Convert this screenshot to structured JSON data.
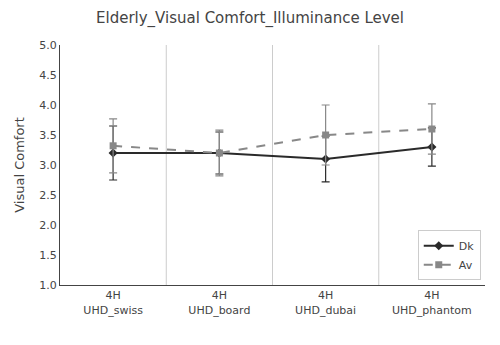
{
  "chart_data": {
    "type": "line",
    "title": "Elderly_Visual Comfort_Illuminance Level",
    "ylabel": "Visual Comfort",
    "categories": [
      "4H\nUHD_swiss",
      "4H\nUHD_board",
      "4H\nUHD_dubai",
      "4H\nUHD_phantom"
    ],
    "series": [
      {
        "name": "Dk",
        "color": "#2a2a2a",
        "marker": "diamond",
        "line_style": "solid",
        "values": [
          3.2,
          3.2,
          3.1,
          3.3
        ],
        "errors": [
          0.45,
          0.35,
          0.38,
          0.32
        ]
      },
      {
        "name": "Av",
        "color": "#888888",
        "marker": "square",
        "line_style": "dash",
        "values": [
          3.32,
          3.2,
          3.5,
          3.6
        ],
        "errors": [
          0.45,
          0.38,
          0.5,
          0.42
        ]
      }
    ],
    "ylim": [
      1,
      5
    ],
    "yticks": [
      {
        "value": 1,
        "label": "1.0"
      },
      1.5,
      {
        "value": 2,
        "label": "2.0"
      },
      2.5,
      {
        "value": 3,
        "label": "3.0"
      },
      3.5,
      {
        "value": 4,
        "label": "4.0"
      },
      4.5,
      {
        "value": 5,
        "label": "5.0"
      }
    ],
    "grid": false,
    "legend": "lower right"
  }
}
